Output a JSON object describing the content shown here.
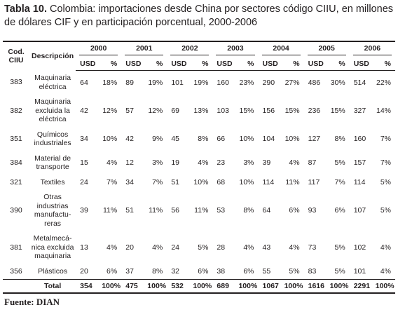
{
  "title": {
    "label": "Tabla 10.",
    "text": "Colombia: importaciones desde China por sectores código CIIU, en millones de dólares CIF y en participación porcentual, 2000-2006"
  },
  "table": {
    "head": {
      "code": "Cod.\nCIIU",
      "description": "Descripción",
      "years": [
        "2000",
        "2001",
        "2002",
        "2003",
        "2004",
        "2005",
        "2006"
      ],
      "usd": "USD",
      "pct": "%"
    },
    "rows": [
      {
        "code": "383",
        "description": "Maquinaria\neléctrica",
        "values": [
          [
            64,
            "18%"
          ],
          [
            89,
            "19%"
          ],
          [
            101,
            "19%"
          ],
          [
            160,
            "23%"
          ],
          [
            290,
            "27%"
          ],
          [
            486,
            "30%"
          ],
          [
            514,
            "22%"
          ]
        ]
      },
      {
        "code": "382",
        "description": "Maquinaria\nexcluida la\neléctrica",
        "values": [
          [
            42,
            "12%"
          ],
          [
            57,
            "12%"
          ],
          [
            69,
            "13%"
          ],
          [
            103,
            "15%"
          ],
          [
            156,
            "15%"
          ],
          [
            236,
            "15%"
          ],
          [
            327,
            "14%"
          ]
        ]
      },
      {
        "code": "351",
        "description": "Químicos\nindustriales",
        "values": [
          [
            34,
            "10%"
          ],
          [
            42,
            "9%"
          ],
          [
            45,
            "8%"
          ],
          [
            66,
            "10%"
          ],
          [
            104,
            "10%"
          ],
          [
            127,
            "8%"
          ],
          [
            160,
            "7%"
          ]
        ]
      },
      {
        "code": "384",
        "description": "Material de\ntransporte",
        "values": [
          [
            15,
            "4%"
          ],
          [
            12,
            "3%"
          ],
          [
            19,
            "4%"
          ],
          [
            23,
            "3%"
          ],
          [
            39,
            "4%"
          ],
          [
            87,
            "5%"
          ],
          [
            157,
            "7%"
          ]
        ]
      },
      {
        "code": "321",
        "description": "Textiles",
        "values": [
          [
            24,
            "7%"
          ],
          [
            34,
            "7%"
          ],
          [
            51,
            "10%"
          ],
          [
            68,
            "10%"
          ],
          [
            114,
            "11%"
          ],
          [
            117,
            "7%"
          ],
          [
            114,
            "5%"
          ]
        ]
      },
      {
        "code": "390",
        "description": "Otras\nindustrias\nmanufactu-\nreras",
        "values": [
          [
            39,
            "11%"
          ],
          [
            51,
            "11%"
          ],
          [
            56,
            "11%"
          ],
          [
            53,
            "8%"
          ],
          [
            64,
            "6%"
          ],
          [
            93,
            "6%"
          ],
          [
            107,
            "5%"
          ]
        ]
      },
      {
        "code": "381",
        "description": "Metalmecá-\nnica excluida\nmaquinaria",
        "values": [
          [
            13,
            "4%"
          ],
          [
            20,
            "4%"
          ],
          [
            24,
            "5%"
          ],
          [
            28,
            "4%"
          ],
          [
            43,
            "4%"
          ],
          [
            73,
            "5%"
          ],
          [
            102,
            "4%"
          ]
        ]
      },
      {
        "code": "356",
        "description": "Plásticos",
        "values": [
          [
            20,
            "6%"
          ],
          [
            37,
            "8%"
          ],
          [
            32,
            "6%"
          ],
          [
            38,
            "6%"
          ],
          [
            55,
            "5%"
          ],
          [
            83,
            "5%"
          ],
          [
            101,
            "4%"
          ]
        ]
      }
    ],
    "total": {
      "label": "Total",
      "values": [
        [
          354,
          "100%"
        ],
        [
          475,
          "100%"
        ],
        [
          532,
          "100%"
        ],
        [
          689,
          "100%"
        ],
        [
          1067,
          "100%"
        ],
        [
          1616,
          "100%"
        ],
        [
          2291,
          "100%"
        ]
      ]
    }
  },
  "source": "Fuente: DIAN"
}
